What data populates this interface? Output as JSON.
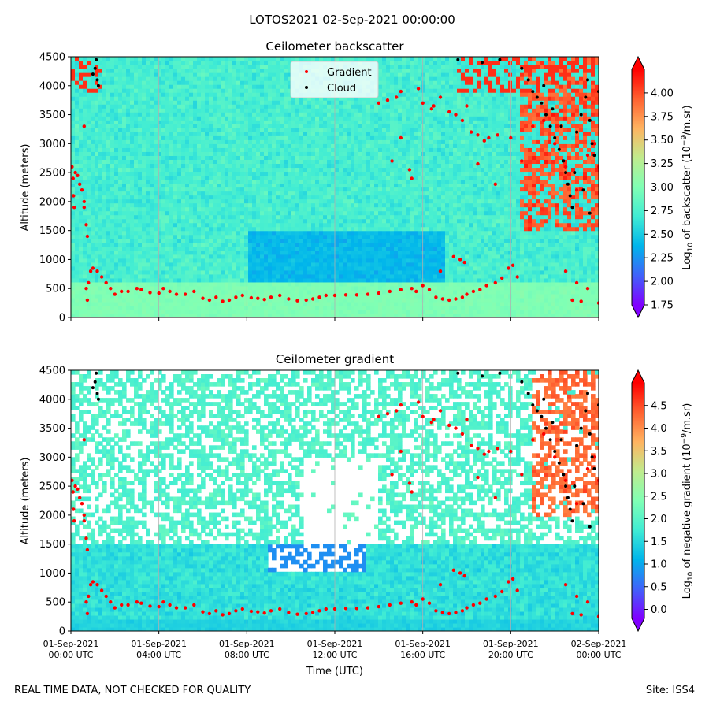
{
  "figure": {
    "suptitle": "LOTOS2021 02-Sep-2021 00:00:00",
    "footer_left": "REAL TIME DATA, NOT CHECKED FOR QUALITY",
    "footer_right": "Site: ISS4"
  },
  "colors": {
    "cmap": [
      "#8000ff",
      "#4062fa",
      "#00b5eb",
      "#40ecd4",
      "#80ffb4",
      "#c0eb8d",
      "#ffb360",
      "#ff6130",
      "#ff0000"
    ],
    "gradient_marker": "#ff0000",
    "cloud_marker": "#000000",
    "grid": "#b0b0b0"
  },
  "chart_data": [
    {
      "type": "heatmap",
      "title": "Ceilometer backscatter",
      "xlabel": "",
      "ylabel": "Altitude (meters)",
      "xlim": [
        0,
        24
      ],
      "ylim": [
        0,
        4500
      ],
      "yticks": [
        0,
        500,
        1000,
        1500,
        2000,
        2500,
        3000,
        3500,
        4000,
        4500
      ],
      "xtick_positions_hours": [
        0,
        4,
        8,
        12,
        16,
        20,
        24
      ],
      "grid": "vertical",
      "legend": {
        "placement": "top-center",
        "entries": [
          "Gradient",
          "Cloud"
        ]
      },
      "colorbar": {
        "label_prefix": "Log",
        "label_base": "10",
        "label_mid": " of backscatter (10",
        "label_exp": "−9",
        "label_unit": "/m.sr)",
        "range": [
          1.75,
          4.25
        ],
        "ticks": [
          "1.75",
          "2.00",
          "2.25",
          "2.50",
          "2.75",
          "3.00",
          "3.25",
          "3.50",
          "3.75",
          "4.00"
        ],
        "tick_values": [
          1.75,
          2.0,
          2.25,
          2.5,
          2.75,
          3.0,
          3.25,
          3.5,
          3.75,
          4.0
        ]
      },
      "field_description": {
        "background_value": 2.75,
        "boundary_layer_mean_value": 3.0,
        "midday_minimum_value": 2.3,
        "late_evening_cloud_value": 4.2
      },
      "series": [
        {
          "name": "Gradient",
          "points": [
            [
              0.05,
              2600
            ],
            [
              0.1,
              2400
            ],
            [
              0.12,
              2100
            ],
            [
              0.15,
              1900
            ],
            [
              0.2,
              2500
            ],
            [
              0.3,
              2450
            ],
            [
              0.4,
              2300
            ],
            [
              0.5,
              2200
            ],
            [
              0.6,
              2000
            ],
            [
              0.6,
              1900
            ],
            [
              0.7,
              1600
            ],
            [
              0.75,
              1400
            ],
            [
              0.6,
              3300
            ],
            [
              0.7,
              500
            ],
            [
              0.75,
              300
            ],
            [
              0.8,
              600
            ],
            [
              0.9,
              800
            ],
            [
              1.0,
              850
            ],
            [
              1.2,
              800
            ],
            [
              1.4,
              700
            ],
            [
              1.6,
              600
            ],
            [
              1.8,
              500
            ],
            [
              2.0,
              400
            ],
            [
              2.3,
              450
            ],
            [
              2.6,
              450
            ],
            [
              3.0,
              500
            ],
            [
              3.2,
              480
            ],
            [
              3.6,
              430
            ],
            [
              4.0,
              420
            ],
            [
              4.2,
              500
            ],
            [
              4.5,
              450
            ],
            [
              4.8,
              400
            ],
            [
              5.2,
              400
            ],
            [
              5.6,
              450
            ],
            [
              6.0,
              330
            ],
            [
              6.3,
              300
            ],
            [
              6.6,
              350
            ],
            [
              6.9,
              280
            ],
            [
              7.2,
              300
            ],
            [
              7.5,
              350
            ],
            [
              7.8,
              380
            ],
            [
              8.2,
              340
            ],
            [
              8.5,
              330
            ],
            [
              8.8,
              310
            ],
            [
              9.1,
              350
            ],
            [
              9.5,
              380
            ],
            [
              9.9,
              320
            ],
            [
              10.3,
              290
            ],
            [
              10.7,
              300
            ],
            [
              11.0,
              320
            ],
            [
              11.3,
              350
            ],
            [
              11.6,
              380
            ],
            [
              12.0,
              380
            ],
            [
              12.5,
              390
            ],
            [
              13.0,
              390
            ],
            [
              13.5,
              400
            ],
            [
              14.0,
              420
            ],
            [
              14.5,
              450
            ],
            [
              15.0,
              480
            ],
            [
              15.5,
              500
            ],
            [
              15.7,
              450
            ],
            [
              16.0,
              550
            ],
            [
              16.3,
              480
            ],
            [
              16.6,
              350
            ],
            [
              16.9,
              320
            ],
            [
              17.2,
              300
            ],
            [
              17.5,
              320
            ],
            [
              17.8,
              350
            ],
            [
              18.0,
              400
            ],
            [
              18.3,
              450
            ],
            [
              18.6,
              480
            ],
            [
              18.9,
              550
            ],
            [
              19.3,
              600
            ],
            [
              19.6,
              680
            ],
            [
              19.9,
              850
            ],
            [
              20.1,
              900
            ],
            [
              20.3,
              700
            ],
            [
              17.4,
              1050
            ],
            [
              17.7,
              1000
            ],
            [
              17.9,
              950
            ],
            [
              16.8,
              800
            ],
            [
              15.0,
              3100
            ],
            [
              15.5,
              2400
            ],
            [
              16.0,
              3700
            ],
            [
              16.4,
              3600
            ],
            [
              16.5,
              3650
            ],
            [
              16.8,
              3800
            ],
            [
              17.2,
              3550
            ],
            [
              17.5,
              3500
            ],
            [
              17.8,
              3400
            ],
            [
              18.0,
              3650
            ],
            [
              18.2,
              3200
            ],
            [
              18.5,
              3150
            ],
            [
              18.8,
              3050
            ],
            [
              19.0,
              3100
            ],
            [
              19.4,
              3150
            ],
            [
              19.3,
              2300
            ],
            [
              15.8,
              3950
            ],
            [
              15.0,
              3900
            ],
            [
              14.8,
              3800
            ],
            [
              14.0,
              3700
            ],
            [
              14.4,
              3750
            ],
            [
              14.6,
              2700
            ],
            [
              15.4,
              2550
            ],
            [
              18.5,
              2650
            ],
            [
              20.0,
              3100
            ],
            [
              20.5,
              2700
            ],
            [
              21.0,
              3300
            ],
            [
              21.5,
              3400
            ],
            [
              22.0,
              3000
            ],
            [
              22.5,
              2600
            ],
            [
              23.0,
              2200
            ],
            [
              23.5,
              2800
            ],
            [
              23.8,
              3000
            ],
            [
              24.0,
              2600
            ],
            [
              22.8,
              300
            ],
            [
              23.2,
              280
            ],
            [
              23.5,
              500
            ],
            [
              22.5,
              800
            ],
            [
              23.0,
              600
            ],
            [
              24.0,
              250
            ]
          ]
        },
        {
          "name": "Cloud",
          "points": [
            [
              1.0,
              4200
            ],
            [
              1.1,
              4300
            ],
            [
              1.2,
              4100
            ],
            [
              1.15,
              4450
            ],
            [
              1.25,
              4000
            ],
            [
              20.5,
              4300
            ],
            [
              20.8,
              4100
            ],
            [
              21.0,
              3900
            ],
            [
              21.2,
              3800
            ],
            [
              21.4,
              3700
            ],
            [
              21.6,
              3500
            ],
            [
              21.8,
              3300
            ],
            [
              22.0,
              3100
            ],
            [
              22.2,
              2900
            ],
            [
              22.4,
              2700
            ],
            [
              22.5,
              2500
            ],
            [
              22.6,
              2300
            ],
            [
              22.7,
              2100
            ],
            [
              22.8,
              1900
            ],
            [
              23.0,
              3200
            ],
            [
              23.2,
              3500
            ],
            [
              23.4,
              3800
            ],
            [
              23.5,
              4100
            ],
            [
              23.6,
              3400
            ],
            [
              23.7,
              3000
            ],
            [
              23.8,
              2800
            ],
            [
              24.0,
              3900
            ],
            [
              21.5,
              4000
            ],
            [
              21.9,
              3600
            ],
            [
              22.3,
              3300
            ],
            [
              22.9,
              2500
            ],
            [
              23.3,
              2200
            ],
            [
              23.6,
              1800
            ],
            [
              19.5,
              4450
            ],
            [
              18.7,
              4400
            ],
            [
              17.6,
              4450
            ]
          ]
        }
      ]
    },
    {
      "type": "heatmap",
      "title": "Ceilometer gradient",
      "xlabel": "Time (UTC)",
      "ylabel": "Altitude (meters)",
      "xlim": [
        0,
        24
      ],
      "ylim": [
        0,
        4500
      ],
      "yticks": [
        0,
        500,
        1000,
        1500,
        2000,
        2500,
        3000,
        3500,
        4000,
        4500
      ],
      "xtick_positions_hours": [
        0,
        4,
        8,
        12,
        16,
        20,
        24
      ],
      "xtick_labels": [
        [
          "01-Sep-2021",
          "00:00 UTC"
        ],
        [
          "01-Sep-2021",
          "04:00 UTC"
        ],
        [
          "01-Sep-2021",
          "08:00 UTC"
        ],
        [
          "01-Sep-2021",
          "12:00 UTC"
        ],
        [
          "01-Sep-2021",
          "16:00 UTC"
        ],
        [
          "01-Sep-2021",
          "20:00 UTC"
        ],
        [
          "02-Sep-2021",
          "00:00 UTC"
        ]
      ],
      "grid": "vertical",
      "colorbar": {
        "label_prefix": "Log",
        "label_base": "10",
        "label_mid": " of negative gradient (10",
        "label_exp": "−9",
        "label_unit": "/m.sr)",
        "range": [
          -0.2,
          5.0
        ],
        "ticks": [
          "0.0",
          "0.5",
          "1.0",
          "1.5",
          "2.0",
          "2.5",
          "3.0",
          "3.5",
          "4.0",
          "4.5"
        ],
        "tick_values": [
          0.0,
          0.5,
          1.0,
          1.5,
          2.0,
          2.5,
          3.0,
          3.5,
          4.0,
          4.5
        ]
      },
      "field_description": {
        "boundary_layer_mean_value": 1.6,
        "upper_patch_mean_value": 1.8,
        "masked_where": "no negative gradient (white)"
      },
      "series": [
        {
          "name": "Gradient",
          "same_as_panel": 0
        },
        {
          "name": "Cloud",
          "same_as_panel": 0
        }
      ]
    }
  ]
}
